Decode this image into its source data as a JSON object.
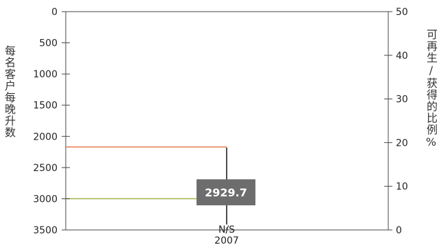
{
  "chart_data": {
    "type": "line",
    "title": "",
    "ylabel_left": "每名客户每晚升数",
    "ylabel_right": "可再生/获得的比例%",
    "x_categories": [
      "N/S"
    ],
    "x_sublabel": "2007",
    "left_axis": {
      "min": 0,
      "max": 3500,
      "inverted": true,
      "ticks": [
        0,
        500,
        1000,
        1500,
        2000,
        2500,
        3000,
        3500
      ]
    },
    "right_axis": {
      "min": 0,
      "max": 50,
      "ticks": [
        0,
        10,
        20,
        30,
        40,
        50
      ]
    },
    "series": [
      {
        "axis": "right",
        "color": "#e8794a",
        "y": 19
      },
      {
        "axis": "left",
        "color": "#a3b347",
        "y": 3000
      }
    ],
    "marker": {
      "category": "N/S",
      "value": 2929.7,
      "label": "2929.7",
      "from_left_value": 2180
    },
    "grid": false
  }
}
